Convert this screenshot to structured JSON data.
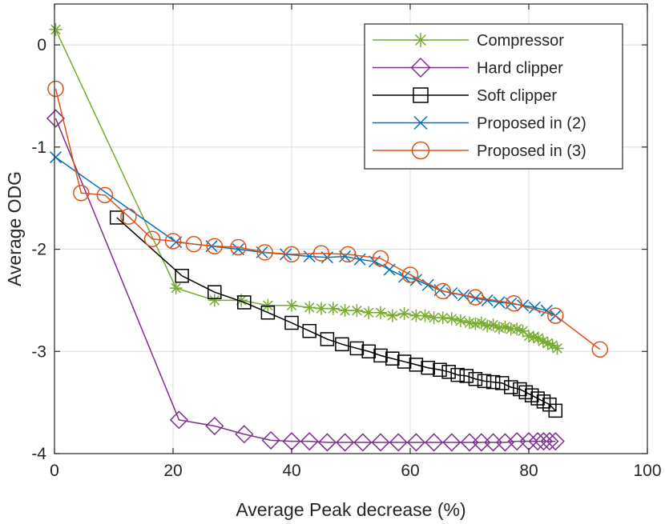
{
  "chart_data": {
    "type": "line",
    "title": "",
    "xlabel": "Average Peak decrease (%)",
    "ylabel": "Average ODG",
    "xlim": [
      0,
      100
    ],
    "ylim": [
      -4,
      0.4
    ],
    "xticks": [
      0,
      20,
      40,
      60,
      80,
      100
    ],
    "yticks": [
      0,
      -1,
      -2,
      -3,
      -4
    ],
    "grid": true,
    "legend_location": "top-right",
    "series": [
      {
        "name": "Compressor",
        "color": "#77AC30",
        "marker": "asterisk",
        "x": [
          0.2,
          20.5,
          27.0,
          31.5,
          36.0,
          40.0,
          43.0,
          45.0,
          47.0,
          49.0,
          51.0,
          53.0,
          55.0,
          57.0,
          59.0,
          61.0,
          62.5,
          64.0,
          65.5,
          67.0,
          68.5,
          70.0,
          71.0,
          72.0,
          73.0,
          74.0,
          75.0,
          76.0,
          77.0,
          78.0,
          79.0,
          80.0,
          80.8,
          81.6,
          82.4,
          83.2,
          84.0,
          84.8
        ],
        "y": [
          0.15,
          -2.38,
          -2.5,
          -2.5,
          -2.55,
          -2.55,
          -2.57,
          -2.58,
          -2.58,
          -2.6,
          -2.6,
          -2.62,
          -2.62,
          -2.65,
          -2.63,
          -2.65,
          -2.65,
          -2.67,
          -2.67,
          -2.68,
          -2.7,
          -2.72,
          -2.73,
          -2.72,
          -2.75,
          -2.74,
          -2.77,
          -2.76,
          -2.78,
          -2.78,
          -2.8,
          -2.85,
          -2.86,
          -2.87,
          -2.9,
          -2.92,
          -2.94,
          -2.97
        ]
      },
      {
        "name": "Hard clipper",
        "color": "#7E2F8E",
        "marker": "diamond",
        "x": [
          0.2,
          21.0,
          27.0,
          32.0,
          36.5,
          40.0,
          43.0,
          46.0,
          49.0,
          52.0,
          55.0,
          58.0,
          61.0,
          64.0,
          67.0,
          70.0,
          72.0,
          74.0,
          76.0,
          78.0,
          80.0,
          81.5,
          82.5,
          83.5,
          84.5
        ],
        "y": [
          -0.72,
          -3.67,
          -3.73,
          -3.81,
          -3.87,
          -3.88,
          -3.88,
          -3.89,
          -3.89,
          -3.89,
          -3.89,
          -3.89,
          -3.89,
          -3.89,
          -3.89,
          -3.89,
          -3.89,
          -3.89,
          -3.89,
          -3.88,
          -3.88,
          -3.88,
          -3.88,
          -3.88,
          -3.88
        ]
      },
      {
        "name": "Soft clipper",
        "color": "#000000",
        "marker": "square",
        "x": [
          10.5,
          21.5,
          27.0,
          32.0,
          36.0,
          40.0,
          43.0,
          46.0,
          48.5,
          51.0,
          53.0,
          55.0,
          57.0,
          59.0,
          61.0,
          63.0,
          65.0,
          66.5,
          68.0,
          69.5,
          71.0,
          72.5,
          74.0,
          75.5,
          77.0,
          78.5,
          79.5,
          80.5,
          81.5,
          82.5,
          83.5,
          84.5
        ],
        "y": [
          -1.69,
          -2.26,
          -2.42,
          -2.52,
          -2.62,
          -2.72,
          -2.8,
          -2.88,
          -2.93,
          -2.97,
          -3.0,
          -3.04,
          -3.07,
          -3.1,
          -3.13,
          -3.16,
          -3.18,
          -3.2,
          -3.23,
          -3.24,
          -3.27,
          -3.29,
          -3.3,
          -3.31,
          -3.35,
          -3.37,
          -3.4,
          -3.43,
          -3.46,
          -3.49,
          -3.52,
          -3.58
        ]
      },
      {
        "name": "Proposed in (2)",
        "color": "#0072BD",
        "marker": "x",
        "x": [
          0.2,
          20.5,
          26.5,
          31.0,
          35.0,
          39.0,
          43.0,
          46.0,
          49.0,
          51.5,
          54.0,
          56.5,
          59.0,
          61.0,
          63.0,
          65.0,
          67.0,
          69.0,
          71.0,
          73.0,
          75.0,
          77.0,
          79.0,
          81.0,
          83.0,
          84.5
        ],
        "y": [
          -1.1,
          -1.93,
          -1.97,
          -2.0,
          -2.03,
          -2.05,
          -2.07,
          -2.08,
          -2.07,
          -2.1,
          -2.12,
          -2.2,
          -2.27,
          -2.3,
          -2.35,
          -2.4,
          -2.43,
          -2.45,
          -2.48,
          -2.5,
          -2.52,
          -2.53,
          -2.55,
          -2.57,
          -2.6,
          -2.65
        ]
      },
      {
        "name": "Proposed in (3)",
        "color": "#D95319",
        "marker": "circle",
        "x": [
          0.2,
          4.5,
          8.5,
          12.5,
          16.5,
          20.0,
          23.5,
          27.0,
          31.0,
          35.5,
          40.0,
          45.0,
          49.5,
          55.0,
          60.0,
          65.5,
          71.0,
          77.5,
          84.5,
          92.0
        ],
        "y": [
          -0.43,
          -1.45,
          -1.47,
          -1.68,
          -1.9,
          -1.92,
          -1.95,
          -1.97,
          -1.98,
          -2.03,
          -2.05,
          -2.04,
          -2.05,
          -2.09,
          -2.25,
          -2.41,
          -2.47,
          -2.53,
          -2.65,
          -2.98
        ]
      }
    ]
  }
}
